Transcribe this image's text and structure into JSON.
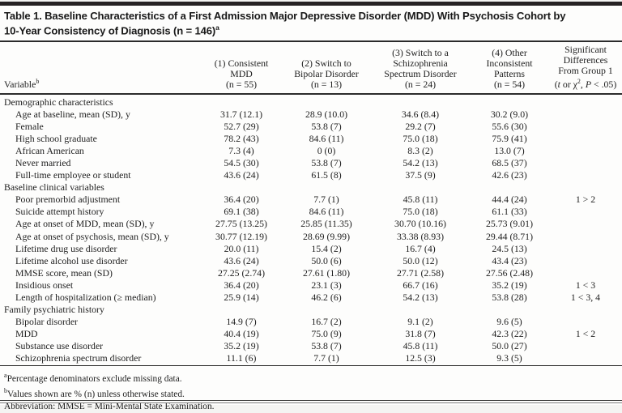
{
  "table": {
    "title_lines": [
      "Table 1. Baseline Characteristics of a First Admission Major Depressive Disorder (MDD) With Psychosis Cohort by",
      "10-Year Consistency of Diagnosis (n = 146)"
    ],
    "title_superscript": "a",
    "variable_header": "Variable",
    "variable_header_superscript": "b",
    "group_columns": [
      {
        "lines": [
          "(1) Consistent",
          "MDD",
          "(n = 55)"
        ]
      },
      {
        "lines": [
          "(2) Switch to",
          "Bipolar Disorder",
          "(n = 13)"
        ]
      },
      {
        "lines": [
          "(3) Switch to a",
          "Schizophrenia",
          "Spectrum Disorder",
          "(n = 24)"
        ]
      },
      {
        "lines": [
          "(4) Other",
          "Inconsistent",
          "Patterns",
          "(n = 54)"
        ]
      },
      {
        "lines": [
          "Significant",
          "Differences",
          "From Group 1"
        ],
        "formula_line": [
          {
            "text": "(",
            "style": "normal"
          },
          {
            "text": "t",
            "style": "italic"
          },
          {
            "text": " or χ",
            "style": "normal"
          },
          {
            "text": "2",
            "style": "sup"
          },
          {
            "text": ", ",
            "style": "normal"
          },
          {
            "text": "P",
            "style": "italic"
          },
          {
            "text": " < .05)",
            "style": "normal"
          }
        ]
      }
    ],
    "rows": [
      {
        "type": "section",
        "label": "Demographic characteristics",
        "values": [
          "",
          "",
          "",
          "",
          ""
        ]
      },
      {
        "type": "item",
        "label": "Age at baseline, mean (SD), y",
        "values": [
          "31.7 (12.1)",
          "28.9 (10.0)",
          "34.6 (8.4)",
          "30.2 (9.0)",
          ""
        ]
      },
      {
        "type": "item",
        "label": "Female",
        "values": [
          "52.7 (29)",
          "53.8 (7)",
          "29.2 (7)",
          "55.6 (30)",
          ""
        ]
      },
      {
        "type": "item",
        "label": "High school graduate",
        "values": [
          "78.2 (43)",
          "84.6 (11)",
          "75.0 (18)",
          "75.9 (41)",
          ""
        ]
      },
      {
        "type": "item",
        "label": "African American",
        "values": [
          "7.3 (4)",
          "0 (0)",
          "8.3 (2)",
          "13.0 (7)",
          ""
        ]
      },
      {
        "type": "item",
        "label": "Never married",
        "values": [
          "54.5 (30)",
          "53.8 (7)",
          "54.2 (13)",
          "68.5 (37)",
          ""
        ]
      },
      {
        "type": "item",
        "label": "Full-time employee or student",
        "values": [
          "43.6 (24)",
          "61.5 (8)",
          "37.5 (9)",
          "42.6 (23)",
          ""
        ]
      },
      {
        "type": "section",
        "label": "Baseline clinical variables",
        "values": [
          "",
          "",
          "",
          "",
          ""
        ]
      },
      {
        "type": "item",
        "label": "Poor premorbid adjustment",
        "values": [
          "36.4 (20)",
          "7.7 (1)",
          "45.8 (11)",
          "44.4 (24)",
          "1 > 2"
        ]
      },
      {
        "type": "item",
        "label": "Suicide attempt history",
        "values": [
          "69.1 (38)",
          "84.6 (11)",
          "75.0 (18)",
          "61.1 (33)",
          ""
        ]
      },
      {
        "type": "item",
        "label": "Age at onset of MDD, mean (SD), y",
        "values": [
          "27.75 (13.25)",
          "25.85 (11.35)",
          "30.70 (10.16)",
          "25.73 (9.01)",
          ""
        ]
      },
      {
        "type": "item",
        "label": "Age at onset of psychosis, mean (SD), y",
        "values": [
          "30.77 (12.19)",
          "28.69 (9.99)",
          "33.38 (8.93)",
          "29.44 (8.71)",
          ""
        ]
      },
      {
        "type": "item",
        "label": "Lifetime drug use disorder",
        "values": [
          "20.0 (11)",
          "15.4 (2)",
          "16.7 (4)",
          "24.5 (13)",
          ""
        ]
      },
      {
        "type": "item",
        "label": "Lifetime alcohol use disorder",
        "values": [
          "43.6 (24)",
          "50.0 (6)",
          "50.0 (12)",
          "43.4 (23)",
          ""
        ]
      },
      {
        "type": "item",
        "label": "MMSE score, mean (SD)",
        "values": [
          "27.25 (2.74)",
          "27.61 (1.80)",
          "27.71 (2.58)",
          "27.56 (2.48)",
          ""
        ]
      },
      {
        "type": "item",
        "label": "Insidious onset",
        "values": [
          "36.4 (20)",
          "23.1 (3)",
          "66.7 (16)",
          "35.2 (19)",
          "1 < 3"
        ]
      },
      {
        "type": "item",
        "label": "Length of hospitalization (≥ median)",
        "values": [
          "25.9 (14)",
          "46.2 (6)",
          "54.2 (13)",
          "53.8 (28)",
          "1 < 3, 4"
        ]
      },
      {
        "type": "section",
        "label": "Family psychiatric history",
        "values": [
          "",
          "",
          "",
          "",
          ""
        ]
      },
      {
        "type": "item",
        "label": "Bipolar disorder",
        "values": [
          "14.9 (7)",
          "16.7 (2)",
          "9.1 (2)",
          "9.6 (5)",
          ""
        ]
      },
      {
        "type": "item",
        "label": "MDD",
        "values": [
          "40.4 (19)",
          "75.0 (9)",
          "31.8 (7)",
          "42.3 (22)",
          "1 < 2"
        ]
      },
      {
        "type": "item",
        "label": "Substance use disorder",
        "values": [
          "35.2 (19)",
          "53.8 (7)",
          "45.8 (11)",
          "50.0 (27)",
          ""
        ]
      },
      {
        "type": "item",
        "label": "Schizophrenia spectrum disorder",
        "values": [
          "11.1 (6)",
          "7.7 (1)",
          "12.5 (3)",
          "9.3 (5)",
          ""
        ]
      }
    ],
    "footnotes": [
      {
        "sup": "a",
        "text": "Percentage denominators exclude missing data."
      },
      {
        "sup": "b",
        "text": "Values shown are % (n) unless otherwise stated."
      },
      {
        "sup": "",
        "text": "Abbreviation: MMSE = Mini-Mental State Examination."
      }
    ]
  }
}
